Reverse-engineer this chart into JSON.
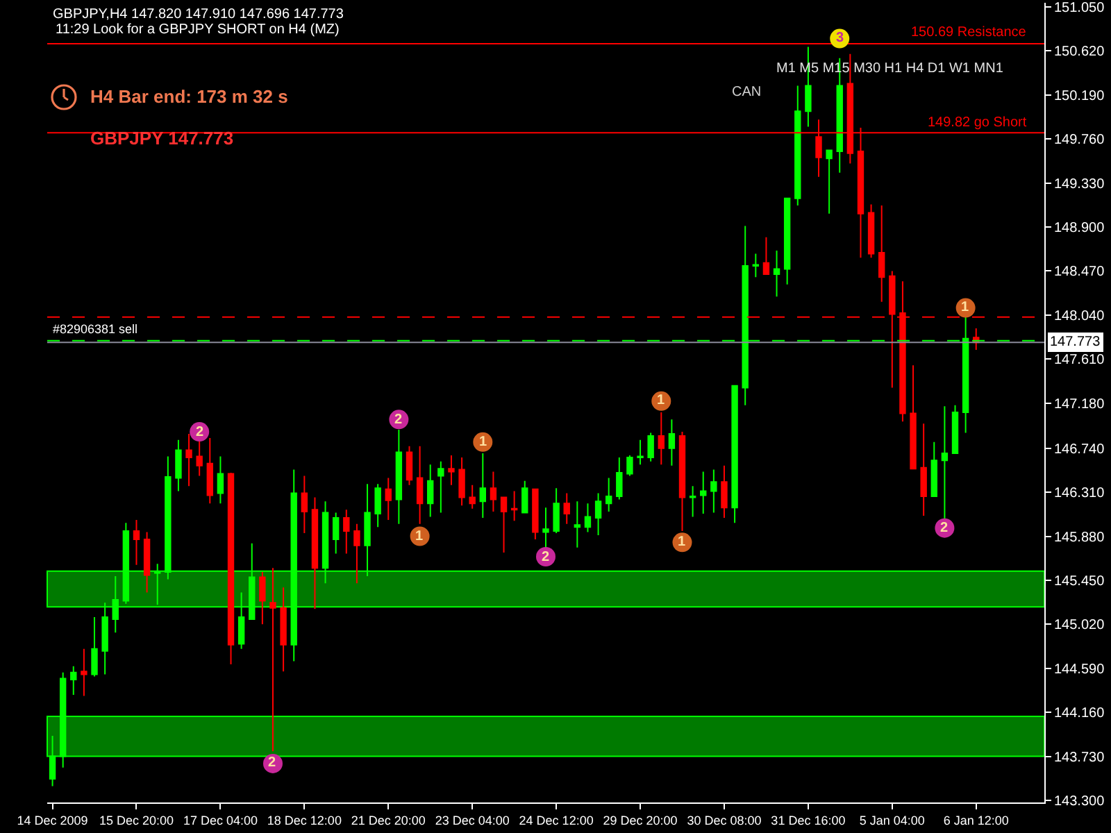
{
  "chart_data": {
    "type": "candlestick",
    "title": "GBPJPY,H4 147.820 147.910 147.696 147.773",
    "subtitle": "11:29 Look for a GBPJPY SHORT on H4 (MZ)",
    "categories": [
      "14 Dec 2009",
      null,
      null,
      null,
      null,
      null,
      null,
      null,
      "15 Dec 20:00",
      null,
      null,
      null,
      null,
      null,
      null,
      null,
      "17 Dec 04:00",
      null,
      null,
      null,
      null,
      null,
      null,
      null,
      "18 Dec 12:00",
      null,
      null,
      null,
      null,
      null,
      null,
      null,
      "21 Dec 20:00",
      null,
      null,
      null,
      null,
      null,
      null,
      null,
      "23 Dec 04:00",
      null,
      null,
      null,
      null,
      null,
      null,
      null,
      "24 Dec 12:00",
      null,
      null,
      null,
      null,
      null,
      null,
      null,
      "29 Dec 20:00",
      null,
      null,
      null,
      null,
      null,
      null,
      null,
      "30 Dec 08:00",
      null,
      null,
      null,
      null,
      null,
      null,
      null,
      "31 Dec 16:00",
      null,
      null,
      null,
      null,
      null,
      null,
      null,
      "5 Jan 04:00",
      null,
      null,
      null,
      null,
      null,
      null,
      null,
      "6 Jan 12:00"
    ],
    "ohlc": [
      [
        143.51,
        143.93,
        143.44,
        143.73
      ],
      [
        143.73,
        144.55,
        143.62,
        144.49
      ],
      [
        144.48,
        144.61,
        144.33,
        144.55
      ],
      [
        144.56,
        144.78,
        144.32,
        144.53
      ],
      [
        144.53,
        145.09,
        144.51,
        144.78
      ],
      [
        144.76,
        145.23,
        144.53,
        145.09
      ],
      [
        145.07,
        145.49,
        144.94,
        145.26
      ],
      [
        145.25,
        146.01,
        145.22,
        145.93
      ],
      [
        145.93,
        146.04,
        145.6,
        145.85
      ],
      [
        145.85,
        145.92,
        145.33,
        145.5
      ],
      [
        145.52,
        145.61,
        145.21,
        145.53
      ],
      [
        145.53,
        146.66,
        145.46,
        146.46
      ],
      [
        146.45,
        146.82,
        146.32,
        146.72
      ],
      [
        146.72,
        146.88,
        146.37,
        146.65
      ],
      [
        146.66,
        146.81,
        146.47,
        146.57
      ],
      [
        146.59,
        146.84,
        146.2,
        146.28
      ],
      [
        146.3,
        146.66,
        146.2,
        146.49
      ],
      [
        146.49,
        146.5,
        144.63,
        144.82
      ],
      [
        144.83,
        145.33,
        144.78,
        145.09
      ],
      [
        145.07,
        145.81,
        145.07,
        145.48
      ],
      [
        145.48,
        145.53,
        145.02,
        145.25
      ],
      [
        145.23,
        145.57,
        143.78,
        145.18
      ],
      [
        145.18,
        145.38,
        144.56,
        144.82
      ],
      [
        144.82,
        146.53,
        144.66,
        146.3
      ],
      [
        146.3,
        146.47,
        145.91,
        146.12
      ],
      [
        146.14,
        146.26,
        145.17,
        145.57
      ],
      [
        145.57,
        146.22,
        145.42,
        146.11
      ],
      [
        145.85,
        146.11,
        145.71,
        146.06
      ],
      [
        146.06,
        146.14,
        145.71,
        145.93
      ],
      [
        145.93,
        146.0,
        145.42,
        145.79
      ],
      [
        145.79,
        146.39,
        145.49,
        146.11
      ],
      [
        146.1,
        146.39,
        145.97,
        146.35
      ],
      [
        146.34,
        146.45,
        146.04,
        146.23
      ],
      [
        146.24,
        146.92,
        146.0,
        146.7
      ],
      [
        146.7,
        146.76,
        146.38,
        146.43
      ],
      [
        146.45,
        146.76,
        146.0,
        146.2
      ],
      [
        146.2,
        146.58,
        146.07,
        146.42
      ],
      [
        146.47,
        146.61,
        146.11,
        146.54
      ],
      [
        146.54,
        146.67,
        146.38,
        146.51
      ],
      [
        146.53,
        146.65,
        146.18,
        146.26
      ],
      [
        146.26,
        146.38,
        146.15,
        146.2
      ],
      [
        146.22,
        146.69,
        146.06,
        146.35
      ],
      [
        146.35,
        146.51,
        146.12,
        146.24
      ],
      [
        146.26,
        146.26,
        145.72,
        146.12
      ],
      [
        146.15,
        146.32,
        146.03,
        146.14
      ],
      [
        146.11,
        146.42,
        146.11,
        146.35
      ],
      [
        146.34,
        146.34,
        145.85,
        145.92
      ],
      [
        145.92,
        146.16,
        145.77,
        145.95
      ],
      [
        145.93,
        146.35,
        145.91,
        146.2
      ],
      [
        146.2,
        146.3,
        146.0,
        146.1
      ],
      [
        145.97,
        146.22,
        145.77,
        145.99
      ],
      [
        145.97,
        146.2,
        145.92,
        146.07
      ],
      [
        146.06,
        146.3,
        145.89,
        146.22
      ],
      [
        146.2,
        146.45,
        146.12,
        146.27
      ],
      [
        146.27,
        146.65,
        146.24,
        146.5
      ],
      [
        146.49,
        146.67,
        146.47,
        146.65
      ],
      [
        146.65,
        146.82,
        146.58,
        146.66
      ],
      [
        146.65,
        146.89,
        146.61,
        146.86
      ],
      [
        146.86,
        147.09,
        146.58,
        146.74
      ],
      [
        146.74,
        147.02,
        146.57,
        146.88
      ],
      [
        146.86,
        146.9,
        145.93,
        146.26
      ],
      [
        146.26,
        146.37,
        146.07,
        146.27
      ],
      [
        146.28,
        146.51,
        146.1,
        146.32
      ],
      [
        146.32,
        146.53,
        146.11,
        146.41
      ],
      [
        146.41,
        146.57,
        146.06,
        146.16
      ],
      [
        146.16,
        147.35,
        146.01,
        147.35
      ],
      [
        147.33,
        148.91,
        147.16,
        148.52
      ],
      [
        148.52,
        148.64,
        148.41,
        148.53
      ],
      [
        148.55,
        148.8,
        148.44,
        148.44
      ],
      [
        148.44,
        148.67,
        148.22,
        148.49
      ],
      [
        148.49,
        149.18,
        148.34,
        149.18
      ],
      [
        149.18,
        150.28,
        149.11,
        150.03
      ],
      [
        150.03,
        150.66,
        149.88,
        150.28
      ],
      [
        149.78,
        149.95,
        149.39,
        149.58
      ],
      [
        149.57,
        149.65,
        149.03,
        149.65
      ],
      [
        149.64,
        150.55,
        149.43,
        150.28
      ],
      [
        150.3,
        150.59,
        149.52,
        149.62
      ],
      [
        149.64,
        149.87,
        148.6,
        149.03
      ],
      [
        149.04,
        149.12,
        148.6,
        148.64
      ],
      [
        148.65,
        149.11,
        148.17,
        148.41
      ],
      [
        148.42,
        148.47,
        147.33,
        148.05
      ],
      [
        148.06,
        148.37,
        147.0,
        147.08
      ],
      [
        147.08,
        147.55,
        146.54,
        146.54
      ],
      [
        146.55,
        146.98,
        146.08,
        146.27
      ],
      [
        146.27,
        146.8,
        146.27,
        146.62
      ],
      [
        146.62,
        147.15,
        146.04,
        146.69
      ],
      [
        146.69,
        147.16,
        146.69,
        147.09
      ],
      [
        147.09,
        148.02,
        146.89,
        147.81
      ],
      [
        147.82,
        147.91,
        147.7,
        147.773
      ]
    ],
    "ylim": [
      143.28,
      151.09
    ],
    "yticks": [
      {
        "value": 151.05,
        "label": "151.050"
      },
      {
        "value": 150.62,
        "label": "150.620"
      },
      {
        "value": 150.19,
        "label": "150.190"
      },
      {
        "value": 149.76,
        "label": "149.760"
      },
      {
        "value": 149.33,
        "label": "149.330"
      },
      {
        "value": 148.9,
        "label": "148.900"
      },
      {
        "value": 148.47,
        "label": "148.470"
      },
      {
        "value": 148.04,
        "label": "148.040"
      },
      {
        "value": 147.61,
        "label": "147.610"
      },
      {
        "value": 147.18,
        "label": "147.180"
      },
      {
        "value": 146.74,
        "label": "146.740"
      },
      {
        "value": 146.31,
        "label": "146.310"
      },
      {
        "value": 145.88,
        "label": "145.880"
      },
      {
        "value": 145.45,
        "label": "145.450"
      },
      {
        "value": 145.02,
        "label": "145.020"
      },
      {
        "value": 144.59,
        "label": "144.590"
      },
      {
        "value": 144.16,
        "label": "144.160"
      },
      {
        "value": 143.73,
        "label": "143.730"
      },
      {
        "value": 143.3,
        "label": "143.300"
      }
    ],
    "ref_lines": [
      {
        "axis": "y",
        "value": 150.69,
        "label": "150.69 Resistance",
        "color": "#ff0000"
      },
      {
        "axis": "y",
        "value": 149.82,
        "label": "149.82 go Short",
        "color": "#ff0000"
      },
      {
        "axis": "y",
        "value": 148.02,
        "color": "#ff0000",
        "line_style": "dashed"
      },
      {
        "axis": "y",
        "value": 147.79,
        "label": "#82906381 sell",
        "color": "#00ff00",
        "line_style": "dashed"
      },
      {
        "axis": "y",
        "value": 147.773,
        "label": "147.773",
        "color": "#8a8a9a"
      }
    ],
    "bands": [
      {
        "axis": "y",
        "from": 145.19,
        "to": 145.54,
        "color": "#007a00"
      },
      {
        "axis": "y",
        "from": 143.73,
        "to": 144.12,
        "color": "#007a00"
      }
    ],
    "annotations": [
      "H4 Bar end: 173 m 32 s",
      "GBPJPY 147.773",
      "CAN",
      "M1 M5 M15 M30 H1 H4 D1 W1 MN1",
      {
        "text": "2",
        "y": 146.9
      },
      {
        "text": "2",
        "y": 143.66
      },
      {
        "text": "2",
        "y": 147.02
      },
      {
        "text": "1",
        "y": 145.88
      },
      {
        "text": "1",
        "y": 146.8
      },
      {
        "text": "2",
        "y": 145.68
      },
      {
        "text": "1",
        "y": 147.2
      },
      {
        "text": "1",
        "y": 145.82
      },
      {
        "text": "3",
        "y": 150.74
      },
      {
        "text": "2",
        "y": 145.96
      },
      {
        "text": "1",
        "y": 148.11
      }
    ],
    "grid": false,
    "legend": false
  }
}
